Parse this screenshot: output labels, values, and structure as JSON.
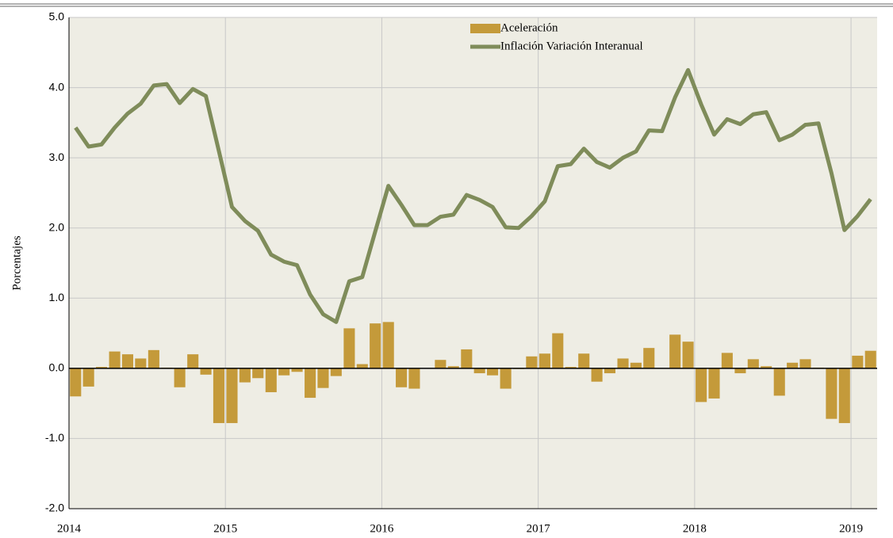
{
  "chart_data": {
    "type": "bar_line",
    "y_label": "Porcentajes",
    "xlim": [
      2014,
      2019.167
    ],
    "xticks": [
      2014,
      2015,
      2016,
      2017,
      2018,
      2019
    ],
    "ylim": [
      -2,
      5
    ],
    "yticks": [
      {
        "value": -2,
        "label": "-2.0"
      },
      {
        "value": -1,
        "label": "-1.0"
      },
      {
        "value": 0,
        "label": "0.0"
      },
      {
        "value": 1,
        "label": "1.0"
      },
      {
        "value": 2,
        "label": "2.0"
      },
      {
        "value": 3,
        "label": "3.0"
      },
      {
        "value": 4,
        "label": "4.0"
      },
      {
        "value": 5,
        "label": "5.0"
      }
    ],
    "grid": true,
    "legend": "top",
    "x": [
      2014.042,
      2014.125,
      2014.208,
      2014.292,
      2014.375,
      2014.458,
      2014.542,
      2014.625,
      2014.708,
      2014.792,
      2014.875,
      2014.958,
      2015.042,
      2015.125,
      2015.208,
      2015.292,
      2015.375,
      2015.458,
      2015.542,
      2015.625,
      2015.708,
      2015.792,
      2015.875,
      2015.958,
      2016.042,
      2016.125,
      2016.208,
      2016.292,
      2016.375,
      2016.458,
      2016.542,
      2016.625,
      2016.708,
      2016.792,
      2016.875,
      2016.958,
      2017.042,
      2017.125,
      2017.208,
      2017.292,
      2017.375,
      2017.458,
      2017.542,
      2017.625,
      2017.708,
      2017.792,
      2017.875,
      2017.958,
      2018.042,
      2018.125,
      2018.208,
      2018.292,
      2018.375,
      2018.458,
      2018.542,
      2018.625,
      2018.708,
      2018.792,
      2018.875,
      2018.958,
      2019.042,
      2019.125
    ],
    "series": [
      {
        "name": "Aceleración",
        "kind": "bar",
        "color": "#c49a3a",
        "values": [
          -0.4,
          -0.26,
          0.02,
          0.24,
          0.2,
          0.14,
          0.26,
          0.01,
          -0.27,
          0.2,
          -0.09,
          -0.78,
          -0.78,
          -0.2,
          -0.14,
          -0.34,
          -0.1,
          -0.05,
          -0.42,
          -0.28,
          -0.11,
          0.57,
          0.06,
          0.64,
          0.66,
          -0.27,
          -0.29,
          0,
          0.12,
          0.03,
          0.27,
          -0.07,
          -0.1,
          -0.29,
          -0.01,
          0.17,
          0.21,
          0.5,
          0.02,
          0.21,
          -0.19,
          -0.07,
          0.14,
          0.08,
          0.29,
          0,
          0.48,
          0.38,
          -0.48,
          -0.43,
          0.22,
          -0.07,
          0.13,
          0.03,
          -0.39,
          0.08,
          0.13,
          0.01,
          -0.72,
          -0.78,
          0.18,
          0.25
        ]
      },
      {
        "name": "Inflación Variación Interanual",
        "kind": "line",
        "color": "#7f8c5a",
        "values": [
          3.43,
          3.16,
          3.19,
          3.43,
          3.63,
          3.77,
          4.03,
          4.05,
          3.78,
          3.98,
          3.88,
          3.1,
          2.3,
          2.1,
          1.96,
          1.62,
          1.52,
          1.47,
          1.05,
          0.77,
          0.66,
          1.24,
          1.3,
          1.95,
          2.6,
          2.33,
          2.04,
          2.04,
          2.16,
          2.19,
          2.47,
          2.4,
          2.3,
          2.01,
          2.0,
          2.17,
          2.38,
          2.88,
          2.91,
          3.13,
          2.94,
          2.86,
          3.0,
          3.09,
          3.39,
          3.38,
          3.86,
          4.25,
          3.76,
          3.33,
          3.55,
          3.48,
          3.62,
          3.65,
          3.25,
          3.33,
          3.47,
          3.49,
          2.78,
          1.97,
          2.17,
          2.41
        ]
      }
    ]
  }
}
